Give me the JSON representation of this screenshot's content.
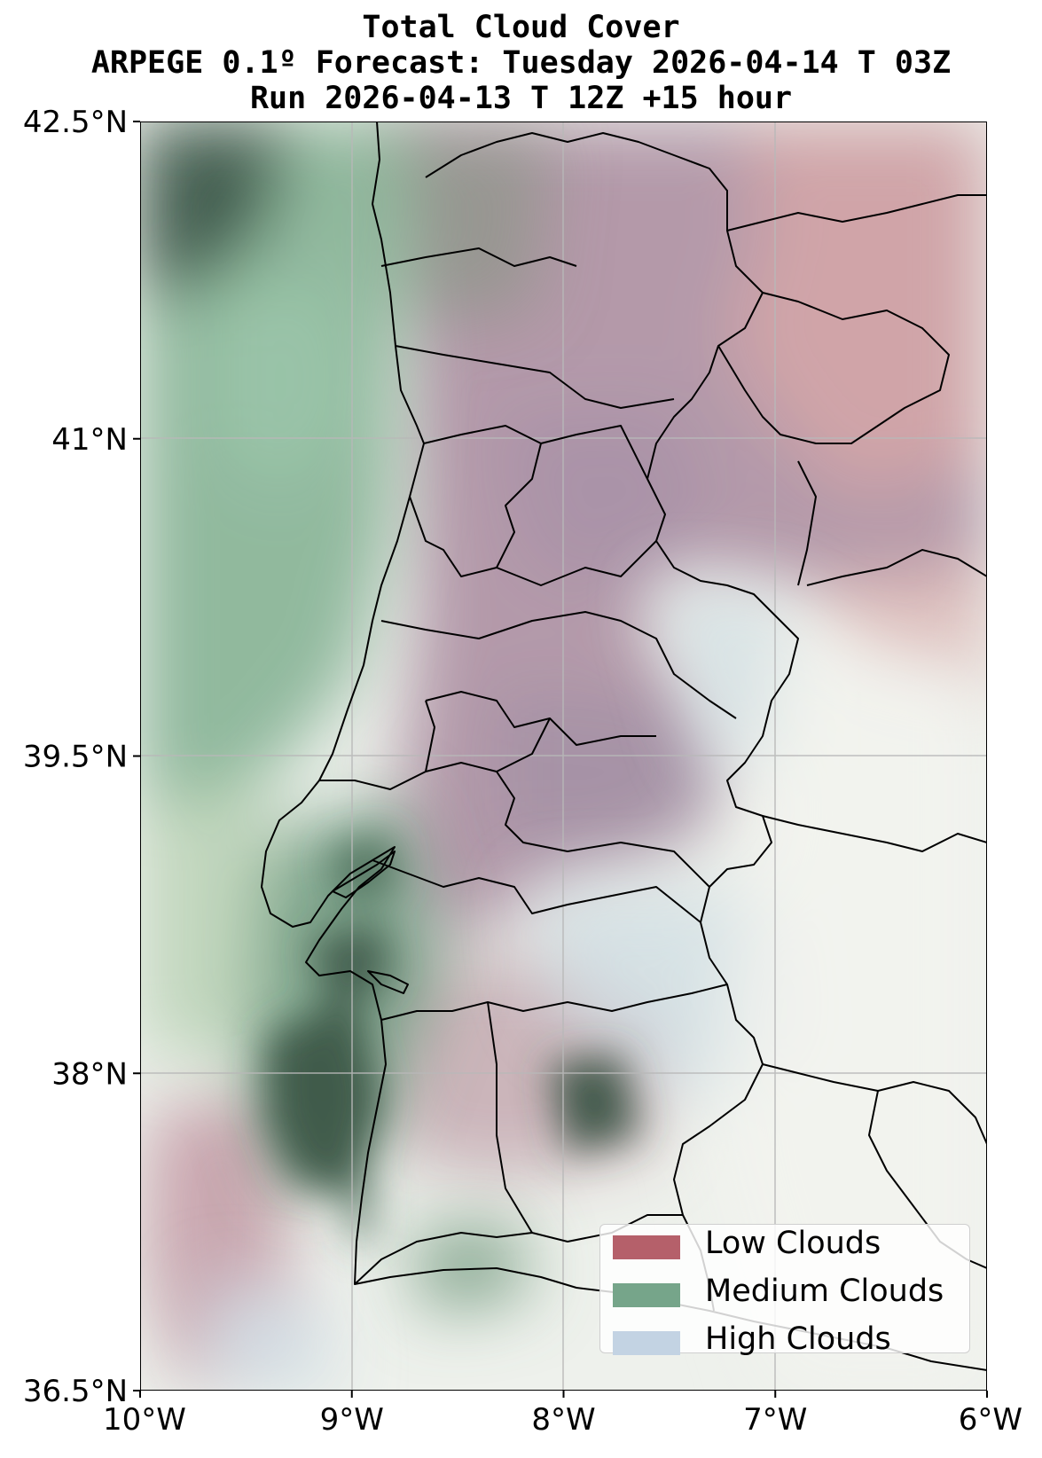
{
  "title": {
    "line1": "Total Cloud Cover",
    "line2": "ARPEGE 0.1º Forecast: Tuesday 2026-04-14 T 03Z",
    "line3": "Run 2026-04-13 T 12Z +15 hour"
  },
  "map": {
    "projection": "PlateCarree",
    "lon_range": [
      -10,
      -6
    ],
    "lat_range": [
      36.5,
      42.5
    ],
    "grid": true,
    "region": "Portugal / western Iberian Peninsula"
  },
  "axes": {
    "x_ticks": [
      {
        "value": -10,
        "label": "10°W"
      },
      {
        "value": -9,
        "label": "9°W"
      },
      {
        "value": -8,
        "label": "8°W"
      },
      {
        "value": -7,
        "label": "7°W"
      },
      {
        "value": -6,
        "label": "6°W"
      }
    ],
    "y_ticks": [
      {
        "value": 42.5,
        "label": "42.5°N"
      },
      {
        "value": 41,
        "label": "41°N"
      },
      {
        "value": 39.5,
        "label": "39.5°N"
      },
      {
        "value": 38,
        "label": "38°N"
      },
      {
        "value": 36.5,
        "label": "36.5°N"
      }
    ]
  },
  "legend": {
    "placement": "lower-right",
    "items": [
      {
        "label": "Low Clouds",
        "color": "#b5606a"
      },
      {
        "label": "Medium Clouds",
        "color": "#76a58a"
      },
      {
        "label": "High Clouds",
        "color": "#c3d3e3"
      }
    ]
  },
  "colors": {
    "low": "#b5606a",
    "medium": "#76a58a",
    "high": "#c3d3e3",
    "dark_medium": "#3d5a4a",
    "grid": "#b8b8b8",
    "border": "#000000"
  }
}
